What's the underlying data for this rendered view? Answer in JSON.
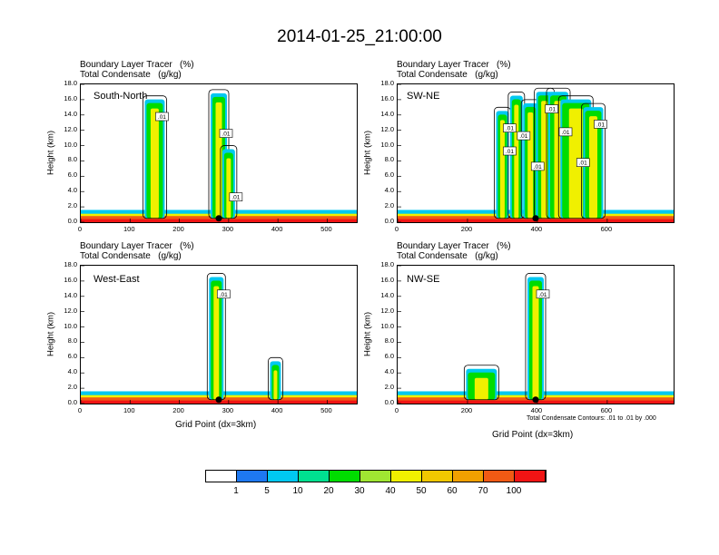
{
  "title": "2014-01-25_21:00:00",
  "header_line1": "Boundary Layer Tracer   (%)",
  "header_line2": "Total Condensate   (g/kg)",
  "ylabel": "Height (km)",
  "xlabel": "Grid Point (dx=3km)",
  "contour_note": "Total Condensate Contours: .01 to .01 by .000",
  "colorbar": {
    "colors": [
      "#ffffff",
      "#1e78f0",
      "#00c8f0",
      "#00e090",
      "#00dc00",
      "#a0e632",
      "#f0f000",
      "#f0c800",
      "#f0a000",
      "#f05a14",
      "#f01414"
    ],
    "labels": [
      "1",
      "5",
      "10",
      "20",
      "30",
      "40",
      "50",
      "60",
      "70",
      "100"
    ]
  },
  "chart_data": [
    {
      "type": "heatmap",
      "panel": "South-North",
      "title": "South-North",
      "ylim": [
        0,
        18
      ],
      "xlim": [
        0,
        560
      ],
      "yticks": [
        "0.0",
        "2.0",
        "4.0",
        "6.0",
        "8.0",
        "10.0",
        "12.0",
        "14.0",
        "16.0",
        "18.0"
      ],
      "xticks": [
        "0",
        "100",
        "200",
        "300",
        "400",
        "500"
      ],
      "xtick_values": [
        0,
        100,
        200,
        300,
        400,
        500
      ],
      "contour_labels": [
        ".01",
        ".01",
        ".01"
      ],
      "columns": [
        {
          "x": 150,
          "top_km": 16.5,
          "width": 18
        },
        {
          "x": 280,
          "top_km": 17.3,
          "width": 14
        },
        {
          "x": 300,
          "top_km": 10.0,
          "width": 10
        }
      ],
      "marker_x": 280
    },
    {
      "type": "heatmap",
      "panel": "SW-NE",
      "title": "SW-NE",
      "ylim": [
        0,
        18
      ],
      "xlim": [
        0,
        790
      ],
      "yticks": [
        "0.0",
        "2.0",
        "4.0",
        "6.0",
        "8.0",
        "10.0",
        "12.0",
        "14.0",
        "16.0",
        "18.0"
      ],
      "xticks": [
        "0",
        "200",
        "400",
        "600"
      ],
      "xtick_values": [
        0,
        200,
        400,
        600
      ],
      "contour_labels": [
        ".01",
        ".01",
        ".01",
        ".01",
        ".01",
        ".01",
        ".01",
        ".01"
      ],
      "columns": [
        {
          "x": 300,
          "top_km": 15.0,
          "width": 10
        },
        {
          "x": 340,
          "top_km": 17.0,
          "width": 10
        },
        {
          "x": 380,
          "top_km": 16.0,
          "width": 12
        },
        {
          "x": 420,
          "top_km": 17.5,
          "width": 14
        },
        {
          "x": 460,
          "top_km": 17.5,
          "width": 18
        },
        {
          "x": 510,
          "top_km": 16.5,
          "width": 30
        },
        {
          "x": 560,
          "top_km": 15.5,
          "width": 18
        }
      ],
      "marker_x": 395
    },
    {
      "type": "heatmap",
      "panel": "West-East",
      "title": "West-East",
      "ylim": [
        0,
        18
      ],
      "xlim": [
        0,
        560
      ],
      "yticks": [
        "0.0",
        "2.0",
        "4.0",
        "6.0",
        "8.0",
        "10.0",
        "12.0",
        "14.0",
        "16.0",
        "18.0"
      ],
      "xticks": [
        "0",
        "100",
        "200",
        "300",
        "400",
        "500"
      ],
      "xtick_values": [
        0,
        100,
        200,
        300,
        400,
        500
      ],
      "contour_labels": [
        ".01"
      ],
      "columns": [
        {
          "x": 275,
          "top_km": 17.0,
          "width": 12
        },
        {
          "x": 395,
          "top_km": 6.0,
          "width": 8
        }
      ],
      "marker_x": 280
    },
    {
      "type": "heatmap",
      "panel": "NW-SE",
      "title": "NW-SE",
      "ylim": [
        0,
        18
      ],
      "xlim": [
        0,
        790
      ],
      "yticks": [
        "0.0",
        "2.0",
        "4.0",
        "6.0",
        "8.0",
        "10.0",
        "12.0",
        "14.0",
        "16.0",
        "18.0"
      ],
      "xticks": [
        "0",
        "200",
        "400",
        "600"
      ],
      "xtick_values": [
        0,
        200,
        400,
        600
      ],
      "contour_labels": [
        ".01"
      ],
      "columns": [
        {
          "x": 395,
          "top_km": 17.0,
          "width": 14
        },
        {
          "x": 240,
          "top_km": 5.0,
          "width": 30
        }
      ],
      "marker_x": 395
    }
  ]
}
